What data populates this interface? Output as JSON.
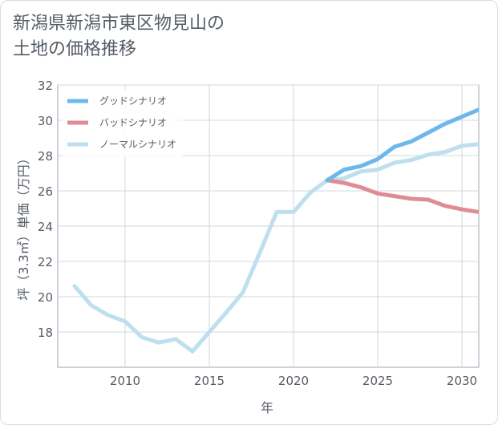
{
  "title": {
    "line1": "新潟県新潟市東区物見山の",
    "line2": "土地の価格推移"
  },
  "colors": {
    "good": "#6cb8ea",
    "bad": "#e08c94",
    "normal": "#bddfee",
    "grid": "#ccd8e2",
    "axis": "#9aa6b2",
    "text": "#555d66"
  },
  "chart_data": {
    "type": "line",
    "xlabel": "年",
    "ylabel": "坪（3.3㎡）単価（万円）",
    "xlim": [
      2006,
      2031
    ],
    "ylim": [
      16,
      32
    ],
    "xticks": [
      2010,
      2015,
      2020,
      2025,
      2030
    ],
    "yticks": [
      18,
      20,
      22,
      24,
      26,
      28,
      30,
      32
    ],
    "grid": true,
    "legend_position": "top-left",
    "series": [
      {
        "name": "グッドシナリオ",
        "color": "#6cb8ea",
        "x": [
          2022,
          2023,
          2024,
          2025,
          2026,
          2027,
          2028,
          2029,
          2030,
          2031
        ],
        "y": [
          26.6,
          27.2,
          27.4,
          27.8,
          28.5,
          28.8,
          29.3,
          29.8,
          30.2,
          30.6
        ]
      },
      {
        "name": "バッドシナリオ",
        "color": "#e08c94",
        "x": [
          2022,
          2023,
          2024,
          2025,
          2026,
          2027,
          2028,
          2029,
          2030,
          2031
        ],
        "y": [
          26.6,
          26.45,
          26.2,
          25.85,
          25.7,
          25.55,
          25.5,
          25.15,
          24.95,
          24.8
        ]
      },
      {
        "name": "ノーマルシナリオ",
        "color": "#bddfee",
        "x": [
          2007,
          2008,
          2009,
          2010,
          2011,
          2012,
          2013,
          2014,
          2015,
          2016,
          2017,
          2018,
          2019,
          2020,
          2021,
          2022,
          2023,
          2024,
          2025,
          2026,
          2027,
          2028,
          2029,
          2030,
          2031
        ],
        "y": [
          20.6,
          19.5,
          18.95,
          18.6,
          17.7,
          17.4,
          17.6,
          16.9,
          18.0,
          19.1,
          20.25,
          22.5,
          24.8,
          24.8,
          25.9,
          26.6,
          26.7,
          27.1,
          27.2,
          27.6,
          27.75,
          28.05,
          28.2,
          28.55,
          28.65
        ]
      }
    ]
  }
}
